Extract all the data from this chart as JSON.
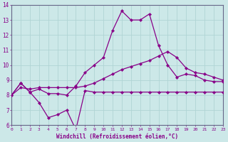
{
  "xlabel": "Windchill (Refroidissement éolien,°C)",
  "background_color": "#cce8e8",
  "grid_color": "#b0d4d4",
  "line_color": "#880088",
  "xmin": 0,
  "xmax": 23,
  "ymin": 6,
  "ymax": 14,
  "hours": [
    0,
    1,
    2,
    3,
    4,
    5,
    6,
    7,
    8,
    9,
    10,
    11,
    12,
    13,
    14,
    15,
    16,
    17,
    18,
    19,
    20,
    21,
    22,
    23
  ],
  "line1": [
    8.0,
    8.8,
    8.2,
    7.5,
    6.5,
    6.7,
    7.0,
    5.7,
    8.3,
    8.2,
    8.2,
    8.2,
    8.2,
    8.2,
    8.2,
    8.2,
    8.2,
    8.2,
    8.2,
    8.2,
    8.2,
    8.2,
    8.2,
    8.2
  ],
  "line2": [
    8.0,
    8.8,
    8.2,
    8.4,
    8.1,
    8.1,
    8.0,
    8.6,
    9.5,
    10.0,
    10.5,
    12.3,
    13.6,
    13.0,
    13.0,
    13.4,
    11.3,
    10.0,
    9.2,
    9.4,
    9.3,
    9.0,
    8.9,
    8.9
  ],
  "line3": [
    8.0,
    8.5,
    8.4,
    8.5,
    8.5,
    8.5,
    8.5,
    8.5,
    8.6,
    8.8,
    9.1,
    9.4,
    9.7,
    9.9,
    10.1,
    10.3,
    10.6,
    10.9,
    10.5,
    9.8,
    9.5,
    9.4,
    9.2,
    9.0
  ]
}
